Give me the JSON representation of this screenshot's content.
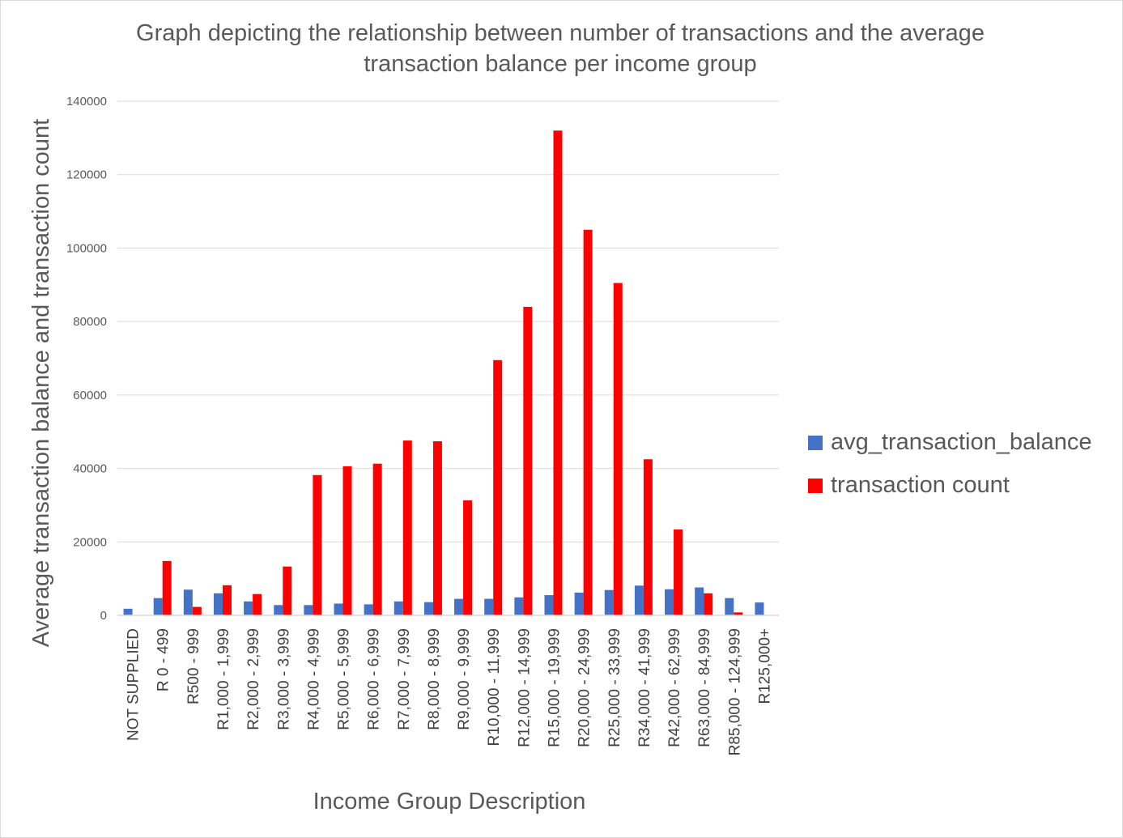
{
  "chart_data": {
    "type": "bar",
    "title": "Graph depicting the relationship between number of transactions and the average transaction balance per income group",
    "xlabel": "Income Group Description",
    "ylabel": "Average transaction balance and transaction count",
    "ylim": [
      0,
      140000
    ],
    "yticks": [
      "0",
      "20000",
      "40000",
      "60000",
      "80000",
      "100000",
      "120000",
      "140000"
    ],
    "grid": true,
    "legend_position": "right",
    "categories": [
      "NOT SUPPLIED",
      "R 0 - 499",
      "R500 - 999",
      "R1,000 - 1,999",
      "R2,000 - 2,999",
      "R3,000 - 3,999",
      "R4,000 - 4,999",
      "R5,000 - 5,999",
      "R6,000 - 6,999",
      "R7,000 - 7,999",
      "R8,000 - 8,999",
      "R9,000 - 9,999",
      "R10,000 - 11,999",
      "R12,000 - 14,999",
      "R15,000 - 19,999",
      "R20,000 - 24,999",
      "R25,000 - 33,999",
      "R34,000 - 41,999",
      "R42,000 - 62,999",
      "R63,000 - 84,999",
      "R85,000 - 124,999",
      "R125,000+"
    ],
    "series": [
      {
        "name": "avg_transaction_balance",
        "color": "#4472c4",
        "values": [
          1800,
          4700,
          7000,
          6000,
          3800,
          2800,
          2800,
          3200,
          3000,
          3800,
          3600,
          4500,
          4500,
          4900,
          5500,
          6200,
          6900,
          8100,
          7100,
          7600,
          4700,
          3500
        ]
      },
      {
        "name": "transaction count",
        "color": "#ff0000",
        "values": [
          0,
          14800,
          2300,
          8200,
          5800,
          13300,
          38200,
          40600,
          41300,
          47600,
          47400,
          31300,
          69500,
          84000,
          132000,
          105000,
          90500,
          42500,
          23400,
          6000,
          800,
          0
        ]
      }
    ]
  }
}
